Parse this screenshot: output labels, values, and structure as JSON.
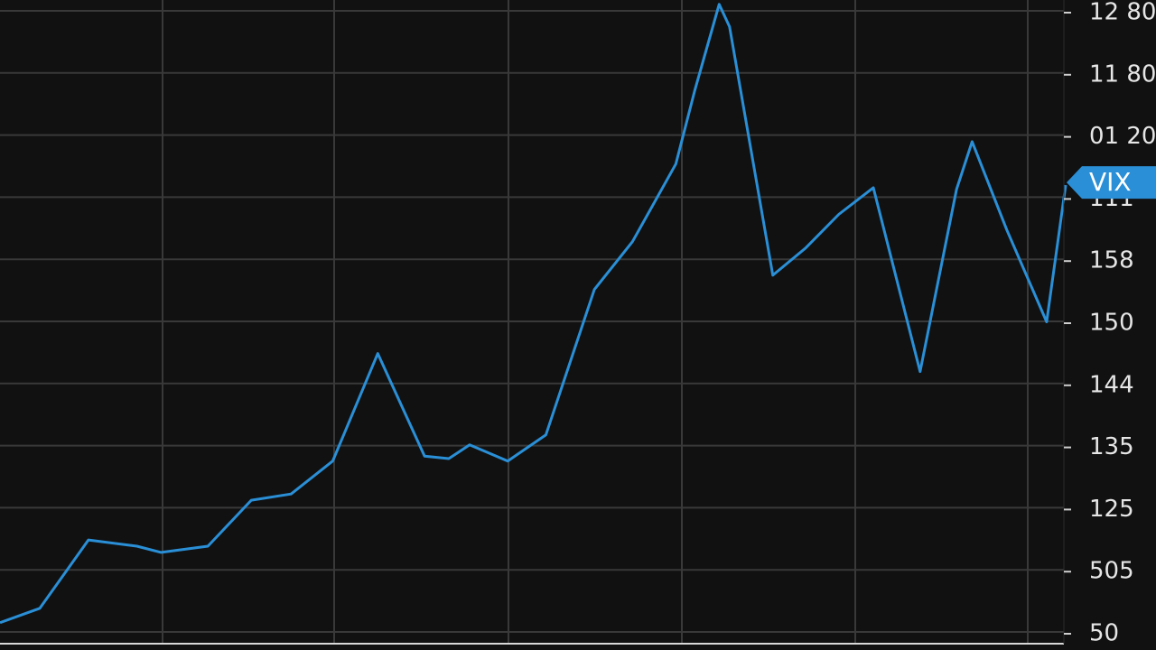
{
  "chart_data": {
    "type": "line",
    "y_axis_labels": [
      "12 80",
      "11 80",
      "01 20",
      "111",
      "158",
      "150",
      "144",
      "135",
      "125",
      "505",
      "50"
    ],
    "x": [
      0,
      0.23,
      0.51,
      0.79,
      0.93,
      1.2,
      1.45,
      1.68,
      1.92,
      2.18,
      2.45,
      2.59,
      2.71,
      2.93,
      3.15,
      3.43,
      3.65,
      3.9,
      4.01,
      4.15,
      4.21,
      4.46,
      4.65,
      4.84,
      5.04,
      5.31,
      5.52,
      5.61,
      5.81,
      6.04,
      6.15
    ],
    "series": [
      {
        "name": "VIX",
        "color": "#2a8fd6",
        "values": [
          0.15,
          0.38,
          1.48,
          1.38,
          1.28,
          1.38,
          2.12,
          2.22,
          2.75,
          4.48,
          2.83,
          2.79,
          3.01,
          2.75,
          3.17,
          5.51,
          6.28,
          7.53,
          8.72,
          10.1,
          9.74,
          5.74,
          6.18,
          6.72,
          7.15,
          4.19,
          7.12,
          7.89,
          6.47,
          4.99,
          7.19
        ]
      }
    ],
    "xlim": [
      0,
      6.15
    ],
    "ylim": [
      0,
      10.17
    ],
    "grid": true
  }
}
